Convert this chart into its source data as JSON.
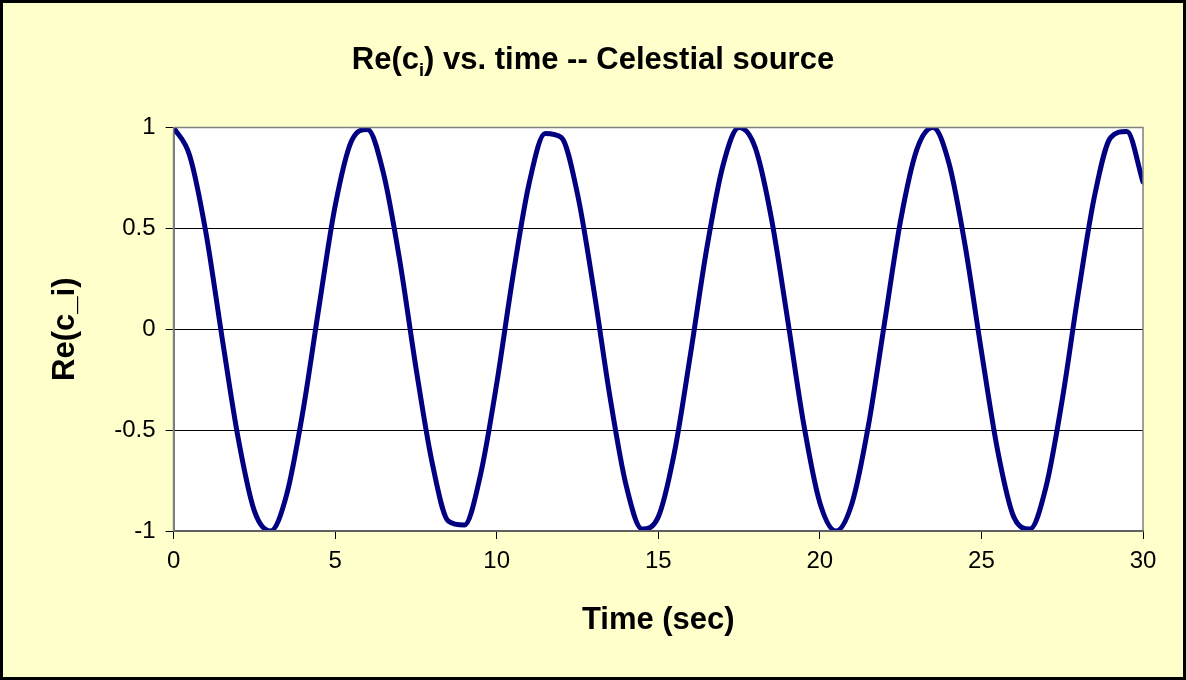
{
  "chart_data": {
    "type": "line",
    "title": "Re(c$_{i}$) vs. time -- Celestial source",
    "xlabel": "Time (sec)",
    "ylabel": "Re(c_i)",
    "x": [
      0,
      0.5,
      1,
      1.5,
      2,
      2.5,
      3,
      3.5,
      4,
      4.5,
      5,
      5.5,
      6,
      6.5,
      7,
      7.5,
      8,
      8.5,
      9,
      9.5,
      10,
      10.5,
      11,
      11.5,
      12,
      12.5,
      13,
      13.5,
      14,
      14.5,
      15,
      15.5,
      16,
      16.5,
      17,
      17.5,
      18,
      18.5,
      19,
      19.5,
      20,
      20.5,
      21,
      21.5,
      22,
      22.5,
      23,
      23.5,
      24,
      24.5,
      25,
      25.5,
      26,
      26.5,
      27,
      27.5,
      28,
      28.5,
      29,
      29.5,
      30
    ],
    "series": [
      {
        "color": "#000080",
        "values": [
          1,
          0.86,
          0.48,
          -0.04,
          -0.54,
          -0.9,
          -1,
          -0.82,
          -0.41,
          0.11,
          0.61,
          0.93,
          0.99,
          0.77,
          0.34,
          -0.19,
          -0.66,
          -0.95,
          -0.97,
          -0.72,
          -0.27,
          0.26,
          0.72,
          0.97,
          0.95,
          0.67,
          0.2,
          -0.33,
          -0.77,
          -0.99,
          -0.93,
          -0.61,
          -0.12,
          0.4,
          0.81,
          1,
          0.9,
          0.55,
          0.05,
          -0.47,
          -0.86,
          -1,
          -0.86,
          -0.48,
          0.03,
          0.54,
          0.89,
          1,
          0.82,
          0.41,
          -0.11,
          -0.6,
          -0.93,
          -0.99,
          -0.78,
          -0.35,
          0.18,
          0.66,
          0.95,
          0.98,
          0.73
        ]
      }
    ],
    "xlim": [
      0,
      30
    ],
    "xticks": [
      0,
      5,
      10,
      15,
      20,
      25,
      30
    ],
    "ylim": [
      -1,
      1
    ],
    "yticks": [
      -1,
      -0.5,
      0,
      0.5,
      1
    ],
    "grid": "y",
    "legend": false,
    "marker": "none",
    "line_style": "solid"
  }
}
